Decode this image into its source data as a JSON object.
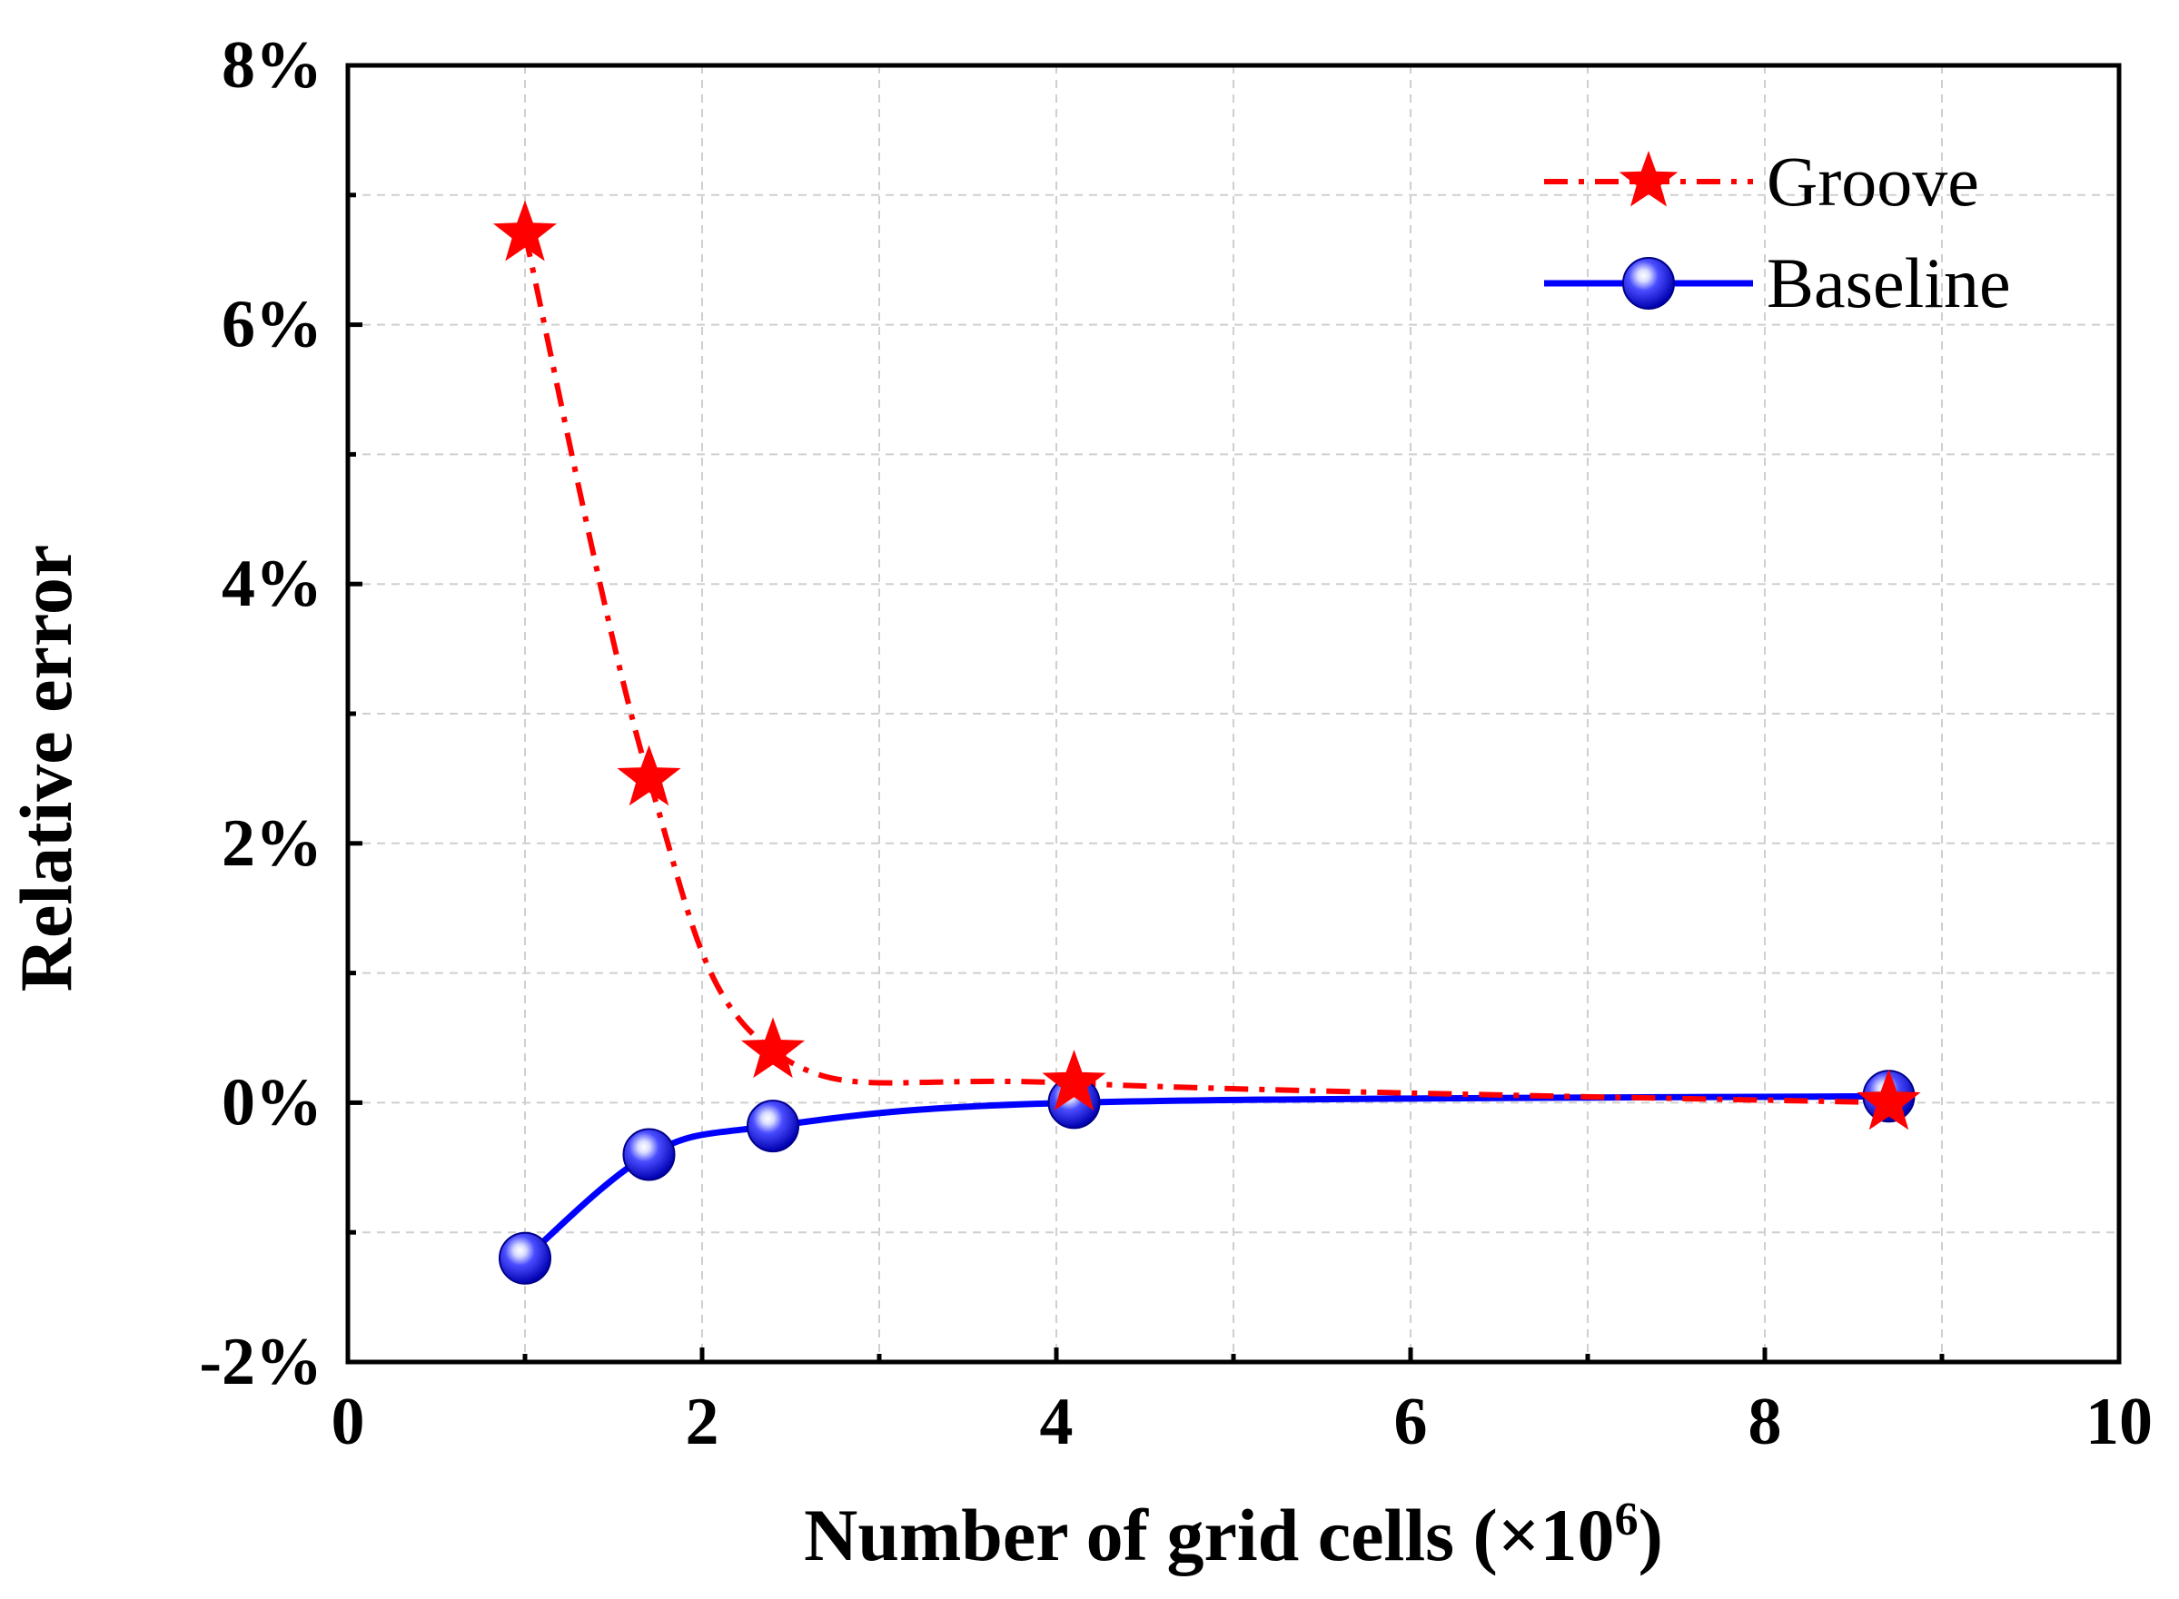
{
  "chart_data": {
    "type": "line",
    "title": "",
    "xlabel": "Number of grid cells (×10",
    "xlabel_superscript": "6",
    "xlabel_suffix": ")",
    "ylabel": "Relative error",
    "xlim": [
      0,
      10
    ],
    "ylim": [
      -2,
      8
    ],
    "x_ticks": [
      0,
      2,
      4,
      6,
      8,
      10
    ],
    "x_tick_labels": [
      "0",
      "2",
      "4",
      "6",
      "8",
      "10"
    ],
    "y_ticks": [
      -2,
      0,
      2,
      4,
      6,
      8
    ],
    "y_tick_labels": [
      "-2%",
      "0%",
      "2%",
      "4%",
      "6%",
      "8%"
    ],
    "grid": true,
    "legend_position": "top-right",
    "series": [
      {
        "name": "Groove",
        "color": "#ff0000",
        "line_style": "dash-dot",
        "marker": "star",
        "x": [
          1.0,
          1.7,
          2.4,
          4.1,
          8.7
        ],
        "y": [
          6.7,
          2.5,
          0.4,
          0.15,
          0.0
        ]
      },
      {
        "name": "Baseline",
        "color": "#0000ff",
        "line_style": "solid",
        "marker": "sphere",
        "x": [
          1.0,
          1.7,
          2.4,
          4.1,
          8.7
        ],
        "y": [
          -1.2,
          -0.4,
          -0.18,
          0.0,
          0.05
        ]
      }
    ]
  }
}
